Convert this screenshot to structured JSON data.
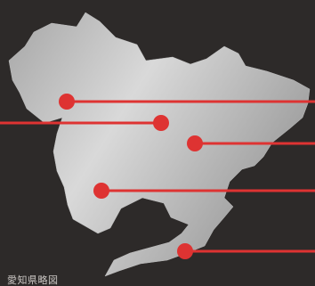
{
  "map": {
    "caption": "愛知県略図",
    "colors": {
      "background": "#2d2a29",
      "land_light": "#d7d7d7",
      "land_dark": "#8f8f8f",
      "marker": "#de3332"
    },
    "markers": [
      {
        "id": "marker-1",
        "direction": "right"
      },
      {
        "id": "marker-2",
        "direction": "left"
      },
      {
        "id": "marker-3",
        "direction": "right"
      },
      {
        "id": "marker-4",
        "direction": "right"
      },
      {
        "id": "marker-5",
        "direction": "right"
      }
    ]
  }
}
